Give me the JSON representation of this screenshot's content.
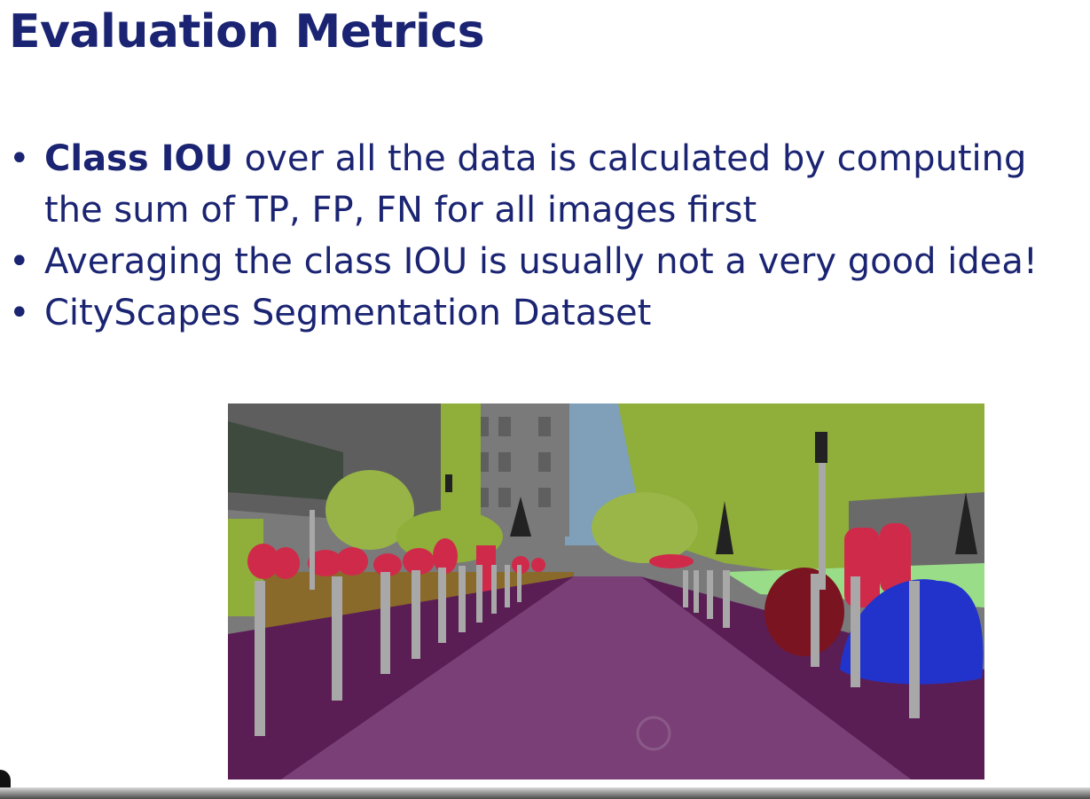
{
  "slide": {
    "title": "Evaluation Metrics",
    "bullets": [
      {
        "bold": "Class IOU",
        "line1": " over all the data is calculated by computing",
        "line2": "the sum of TP, FP, FN for all images first"
      },
      {
        "text": "Averaging the class IOU is usually not a very good idea!"
      },
      {
        "text": "CityScapes Segmentation Dataset"
      }
    ],
    "bullet_symbol": "•"
  },
  "figure": {
    "description_colors": {
      "road": "#7b3f78",
      "sidewalk": "#5a1e55",
      "vegetation": "#8fae3a",
      "building": "#6e6e6e",
      "sky": "#7fa0b8",
      "person": "#d02a4a",
      "car": "#2233cc",
      "motorcycle": "#7a1420",
      "pole": "#9a9a9a",
      "fence": "#8a6a2a"
    }
  }
}
